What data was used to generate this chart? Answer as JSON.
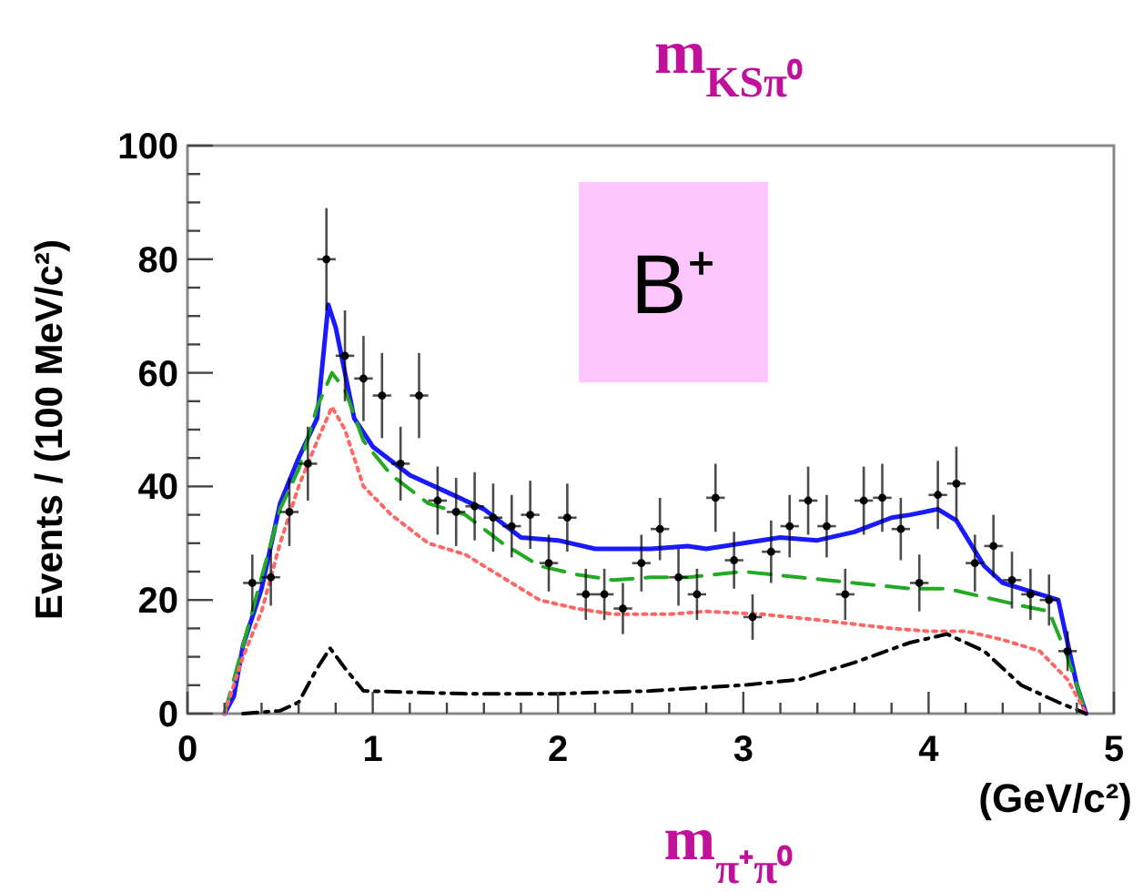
{
  "chart_data": {
    "type": "line",
    "title": "m$_{KSπ⁰}$",
    "xlabel": "(GeV/c²)",
    "ylabel": "Events / (100 MeV/c²)",
    "annotations": [
      "B⁺",
      "m$_{π⁺π⁰}$"
    ],
    "xlim": [
      0,
      5
    ],
    "ylim": [
      0,
      100
    ],
    "xticks": [
      0,
      {
        "value": 0.2,
        "label": null
      },
      {
        "value": 0.4,
        "label": null
      },
      {
        "value": 0.6,
        "label": null
      },
      {
        "value": 0.8,
        "label": null
      },
      1,
      {
        "value": 1.2,
        "label": null
      },
      {
        "value": 1.4,
        "label": null
      },
      {
        "value": 1.6,
        "label": null
      },
      {
        "value": 1.8,
        "label": null
      },
      2,
      {
        "value": 2.2,
        "label": null
      },
      {
        "value": 2.4,
        "label": null
      },
      {
        "value": 2.6,
        "label": null
      },
      {
        "value": 2.8,
        "label": null
      },
      3,
      {
        "value": 3.2,
        "label": null
      },
      {
        "value": 3.4,
        "label": null
      },
      {
        "value": 3.6,
        "label": null
      },
      {
        "value": 3.8,
        "label": null
      },
      4,
      {
        "value": 4.2,
        "label": null
      },
      {
        "value": 4.4,
        "label": null
      },
      {
        "value": 4.6,
        "label": null
      },
      {
        "value": 4.8,
        "label": null
      },
      5
    ],
    "yticks": [
      0,
      {
        "value": 5,
        "label": null
      },
      {
        "value": 10,
        "label": null
      },
      {
        "value": 15,
        "label": null
      },
      20,
      {
        "value": 25,
        "label": null
      },
      {
        "value": 30,
        "label": null
      },
      {
        "value": 35,
        "label": null
      },
      40,
      {
        "value": 45,
        "label": null
      },
      {
        "value": 50,
        "label": null
      },
      {
        "value": 55,
        "label": null
      },
      60,
      {
        "value": 65,
        "label": null
      },
      {
        "value": 70,
        "label": null
      },
      {
        "value": 75,
        "label": null
      },
      80,
      {
        "value": 85,
        "label": null
      },
      {
        "value": 90,
        "label": null
      },
      {
        "value": 95,
        "label": null
      },
      100
    ],
    "grid": false,
    "series": [
      {
        "type": "scatter",
        "color": "#000000",
        "x": [
          0.35,
          0.45,
          0.55,
          0.65,
          0.75,
          0.85,
          0.95,
          1.05,
          1.15,
          1.25,
          1.35,
          1.45,
          1.55,
          1.65,
          1.75,
          1.85,
          1.95,
          2.05,
          2.15,
          2.25,
          2.35,
          2.45,
          2.55,
          2.65,
          2.75,
          2.85,
          2.95,
          3.05,
          3.15,
          3.25,
          3.35,
          3.45,
          3.55,
          3.65,
          3.75,
          3.85,
          3.95,
          4.05,
          4.15,
          4.25,
          4.35,
          4.45,
          4.55,
          4.65,
          4.75
        ],
        "values": [
          23,
          24,
          35.5,
          44,
          80,
          63,
          59,
          56,
          44,
          56,
          37.5,
          35.5,
          36.5,
          34.5,
          33,
          35,
          26.5,
          34.5,
          21,
          21,
          18.5,
          26.5,
          32.5,
          24,
          21,
          38,
          27,
          17,
          28.5,
          33,
          37.5,
          33,
          21,
          37.5,
          38,
          32.5,
          23,
          38.5,
          40.5,
          26.5,
          29.5,
          23.5,
          21,
          20,
          11
        ],
        "errors": [
          5,
          5,
          6,
          6.5,
          9,
          8,
          7.5,
          7.5,
          6.5,
          7.5,
          6,
          6,
          6,
          6,
          5.5,
          6,
          5,
          6,
          4.5,
          4.5,
          4.5,
          5,
          5.5,
          5,
          4.5,
          6,
          5,
          4,
          5.5,
          5.5,
          6,
          5.5,
          4.5,
          6,
          6,
          5.5,
          5,
          6,
          6.5,
          5,
          5.5,
          5,
          4.5,
          4.5,
          3.5
        ],
        "xerrors": [
          0.05,
          0.05,
          0.05,
          0.05,
          0.05,
          0.05,
          0.05,
          0.05,
          0.05,
          0.05,
          0.05,
          0.05,
          0.05,
          0.05,
          0.05,
          0.05,
          0.05,
          0.05,
          0.05,
          0.05,
          0.05,
          0.05,
          0.05,
          0.05,
          0.05,
          0.05,
          0.05,
          0.05,
          0.05,
          0.05,
          0.05,
          0.05,
          0.05,
          0.05,
          0.05,
          0.05,
          0.05,
          0.05,
          0.05,
          0.05,
          0.05,
          0.05,
          0.05,
          0.05,
          0.05
        ]
      },
      {
        "type": "line",
        "color": "#1a1aff",
        "line_style": "solid",
        "x": [
          0.2,
          0.25,
          0.3,
          0.4,
          0.5,
          0.6,
          0.7,
          0.76,
          0.8,
          0.9,
          1.0,
          1.2,
          1.4,
          1.6,
          1.8,
          2.0,
          2.2,
          2.5,
          2.7,
          2.8,
          3.0,
          3.2,
          3.4,
          3.6,
          3.8,
          3.9,
          4.05,
          4.15,
          4.3,
          4.4,
          4.6,
          4.7,
          4.8,
          4.85
        ],
        "values": [
          0,
          3,
          12,
          22,
          37,
          45,
          52,
          72,
          68,
          52,
          47,
          42,
          39,
          36,
          31,
          30.5,
          29,
          29,
          29.5,
          29,
          30,
          31,
          30.5,
          32,
          34.5,
          35,
          36,
          34,
          26,
          23,
          21,
          20,
          5,
          0
        ]
      },
      {
        "type": "line",
        "color": "#22aa22",
        "line_style": "dashed",
        "x": [
          0.2,
          0.3,
          0.4,
          0.5,
          0.6,
          0.7,
          0.78,
          0.85,
          0.95,
          1.1,
          1.3,
          1.5,
          1.7,
          1.9,
          2.1,
          2.3,
          2.5,
          2.7,
          3.0,
          3.3,
          3.6,
          3.9,
          4.1,
          4.3,
          4.5,
          4.65,
          4.75,
          4.85
        ],
        "values": [
          0,
          12,
          24,
          36,
          43,
          54,
          60,
          57,
          48,
          42,
          37,
          35,
          30,
          26,
          24.5,
          23.5,
          24,
          24,
          25,
          24,
          23,
          22,
          22,
          20.5,
          19,
          18,
          10,
          0
        ]
      },
      {
        "type": "line",
        "color": "#ff6666",
        "line_style": "dotted",
        "x": [
          0.2,
          0.3,
          0.4,
          0.5,
          0.6,
          0.7,
          0.78,
          0.85,
          0.95,
          1.1,
          1.3,
          1.5,
          1.7,
          1.9,
          2.1,
          2.3,
          2.6,
          2.8,
          3.1,
          3.4,
          3.8,
          4.0,
          4.2,
          4.4,
          4.6,
          4.75,
          4.85
        ],
        "values": [
          0,
          10,
          18,
          30,
          40,
          48,
          54,
          50,
          40,
          35,
          30,
          28,
          24,
          20,
          18.5,
          17.5,
          17.5,
          18,
          17.5,
          16.5,
          15,
          14.5,
          14.5,
          13,
          11,
          6,
          0
        ]
      },
      {
        "type": "line",
        "color": "#000000",
        "line_style": "dashdot",
        "x": [
          0.3,
          0.5,
          0.6,
          0.7,
          0.77,
          0.85,
          0.95,
          1.5,
          2.0,
          2.5,
          3.0,
          3.3,
          3.6,
          3.9,
          4.1,
          4.3,
          4.5,
          4.7,
          4.85
        ],
        "values": [
          0,
          0.5,
          2,
          8,
          11.5,
          8,
          4,
          3.5,
          3.5,
          4,
          5,
          6,
          9,
          12.5,
          14,
          11,
          5,
          2,
          0
        ]
      }
    ]
  }
}
